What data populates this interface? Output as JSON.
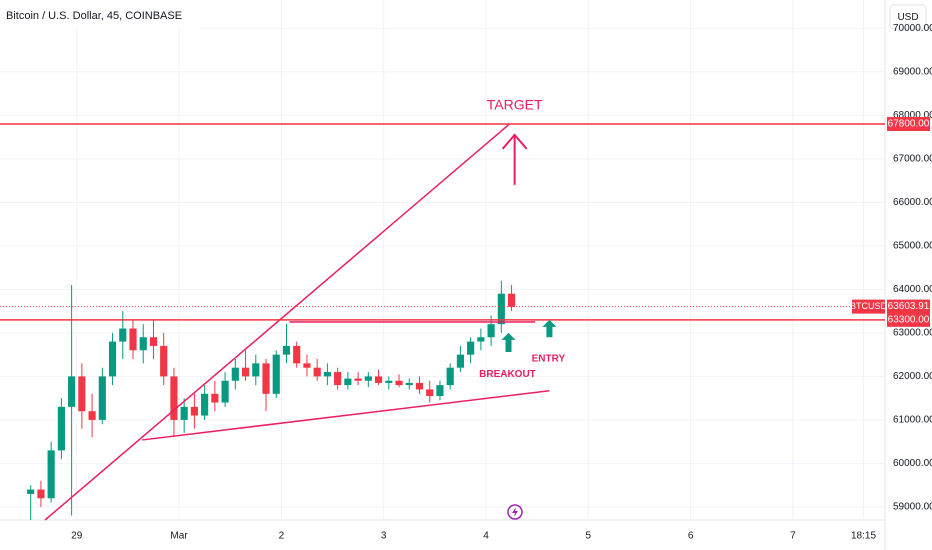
{
  "chart_data": {
    "type": "candlestick",
    "title": "Bitcoin / U.S. Dollar, 45, COINBASE",
    "currency": "USD",
    "up_color": "#089981",
    "down_color": "#f23645",
    "grid": true,
    "x": [
      -0.45,
      -0.35,
      -0.25,
      -0.15,
      -0.05,
      0.05,
      0.15,
      0.25,
      0.35,
      0.45,
      0.55,
      0.65,
      0.75,
      0.85,
      0.95,
      1.05,
      1.15,
      1.25,
      1.35,
      1.45,
      1.55,
      1.65,
      1.75,
      1.85,
      1.95,
      2.05,
      2.15,
      2.25,
      2.35,
      2.45,
      2.55,
      2.65,
      2.75,
      2.85,
      2.95,
      3.05,
      3.15,
      3.25,
      3.35,
      3.45,
      3.55,
      3.65,
      3.75,
      3.85,
      3.95,
      4.05,
      4.15,
      4.25
    ],
    "open": [
      59300,
      59400,
      59200,
      60300,
      61300,
      62000,
      61200,
      61000,
      62000,
      62800,
      63100,
      62600,
      62900,
      62700,
      62000,
      61000,
      61300,
      61100,
      61600,
      61400,
      61900,
      62200,
      62000,
      62300,
      61600,
      62500,
      62700,
      62300,
      62200,
      62000,
      62100,
      61800,
      61950,
      61900,
      62000,
      61850,
      61900,
      61800,
      61850,
      61700,
      61550,
      61800,
      62200,
      62500,
      62800,
      62900,
      63200,
      63900
    ],
    "high": [
      59500,
      59600,
      60500,
      61500,
      64100,
      62300,
      61600,
      62200,
      63000,
      63500,
      63300,
      63200,
      63300,
      63000,
      62200,
      61500,
      61600,
      61800,
      61900,
      62100,
      62400,
      62600,
      62500,
      62400,
      62600,
      63200,
      62800,
      62500,
      62400,
      62300,
      62200,
      62100,
      62100,
      62100,
      62150,
      62000,
      62050,
      61950,
      62000,
      61900,
      61900,
      62300,
      62700,
      62900,
      63100,
      63400,
      64200,
      64100
    ],
    "low": [
      58700,
      59000,
      59100,
      60100,
      58800,
      60800,
      60600,
      60900,
      61800,
      62400,
      62400,
      62300,
      62400,
      61800,
      60600,
      60700,
      60800,
      61000,
      61200,
      61300,
      61700,
      61900,
      61800,
      61200,
      61500,
      62300,
      62200,
      62000,
      61900,
      61800,
      61700,
      61700,
      61800,
      61750,
      61800,
      61700,
      61750,
      61700,
      61600,
      61400,
      61450,
      61700,
      62100,
      62300,
      62600,
      62700,
      63000,
      63500
    ],
    "close": [
      59400,
      59200,
      60300,
      61300,
      62000,
      61200,
      61000,
      62000,
      62800,
      63100,
      62600,
      62900,
      62700,
      62000,
      61000,
      61300,
      61100,
      61600,
      61400,
      61900,
      62200,
      62000,
      62300,
      61600,
      62500,
      62700,
      62300,
      62200,
      62000,
      62100,
      61800,
      61950,
      61900,
      62000,
      61850,
      61900,
      61800,
      61850,
      61700,
      61550,
      61800,
      62200,
      62500,
      62800,
      62900,
      63200,
      63900,
      63600
    ],
    "xlim": [
      -0.75,
      7.9
    ],
    "xticks": [
      {
        "value": 0,
        "label": "29"
      },
      {
        "value": 1,
        "label": "Mar"
      },
      {
        "value": 2,
        "label": "2"
      },
      {
        "value": 3,
        "label": "3"
      },
      {
        "value": 4,
        "label": "4"
      },
      {
        "value": 5,
        "label": "5"
      },
      {
        "value": 6,
        "label": "6"
      },
      {
        "value": 7,
        "label": "7"
      },
      {
        "value": 7.69,
        "label": "18:15"
      }
    ],
    "ylim": [
      58700,
      70650
    ],
    "yticks": [
      {
        "value": 59000,
        "label": "59000.00"
      },
      {
        "value": 60000,
        "label": "60000.00"
      },
      {
        "value": 61000,
        "label": "61000.00"
      },
      {
        "value": 62000,
        "label": "62000.00"
      },
      {
        "value": 63000,
        "label": "63000.00"
      },
      {
        "value": 64000,
        "label": "64000.00"
      },
      {
        "value": 65000,
        "label": "65000.00"
      },
      {
        "value": 66000,
        "label": "66000.00"
      },
      {
        "value": 67000,
        "label": "67000.00"
      },
      {
        "value": 68000,
        "label": "68000.00"
      },
      {
        "value": 69000,
        "label": "69000.00"
      },
      {
        "value": 70000,
        "label": "70000.00"
      }
    ],
    "levels": [
      {
        "value": 67800,
        "label": "67800.00",
        "color": "#f23645"
      },
      {
        "value": 63300,
        "label": "63300.00",
        "color": "#f23645"
      }
    ],
    "last_price": {
      "name": "BTCUSD",
      "value": 63603.91,
      "label": "63603.91",
      "color": "#f23645"
    },
    "trend_lines": [
      {
        "x": [
          -0.31,
          4.23
        ],
        "y": [
          58700,
          67800
        ],
        "color": "#e91e63"
      },
      {
        "x": [
          0.64,
          4.62
        ],
        "y": [
          60540,
          61670
        ],
        "color": "#e91e63"
      },
      {
        "x": [
          2.08,
          4.48
        ],
        "y": [
          63250,
          63250
        ],
        "color": "#e91e63"
      }
    ],
    "arrows": [
      {
        "x": 4.28,
        "from": 66400,
        "to": 67550,
        "color": "#e91e63"
      },
      {
        "x": 4.22,
        "from": 62560,
        "to": 63000,
        "color": "#089981"
      },
      {
        "x": 4.62,
        "from": 62900,
        "to": 63300,
        "color": "#089981"
      }
    ],
    "annotations": [
      {
        "text": "TARGET",
        "x": 4.28,
        "y": 68220,
        "color": "#e91e63"
      },
      {
        "text": "BREAKOUT",
        "x": 4.21,
        "y": 62050,
        "color": "#e91e63"
      },
      {
        "text": "ENTRY",
        "x": 4.61,
        "y": 62400,
        "color": "#e91e63"
      }
    ]
  }
}
